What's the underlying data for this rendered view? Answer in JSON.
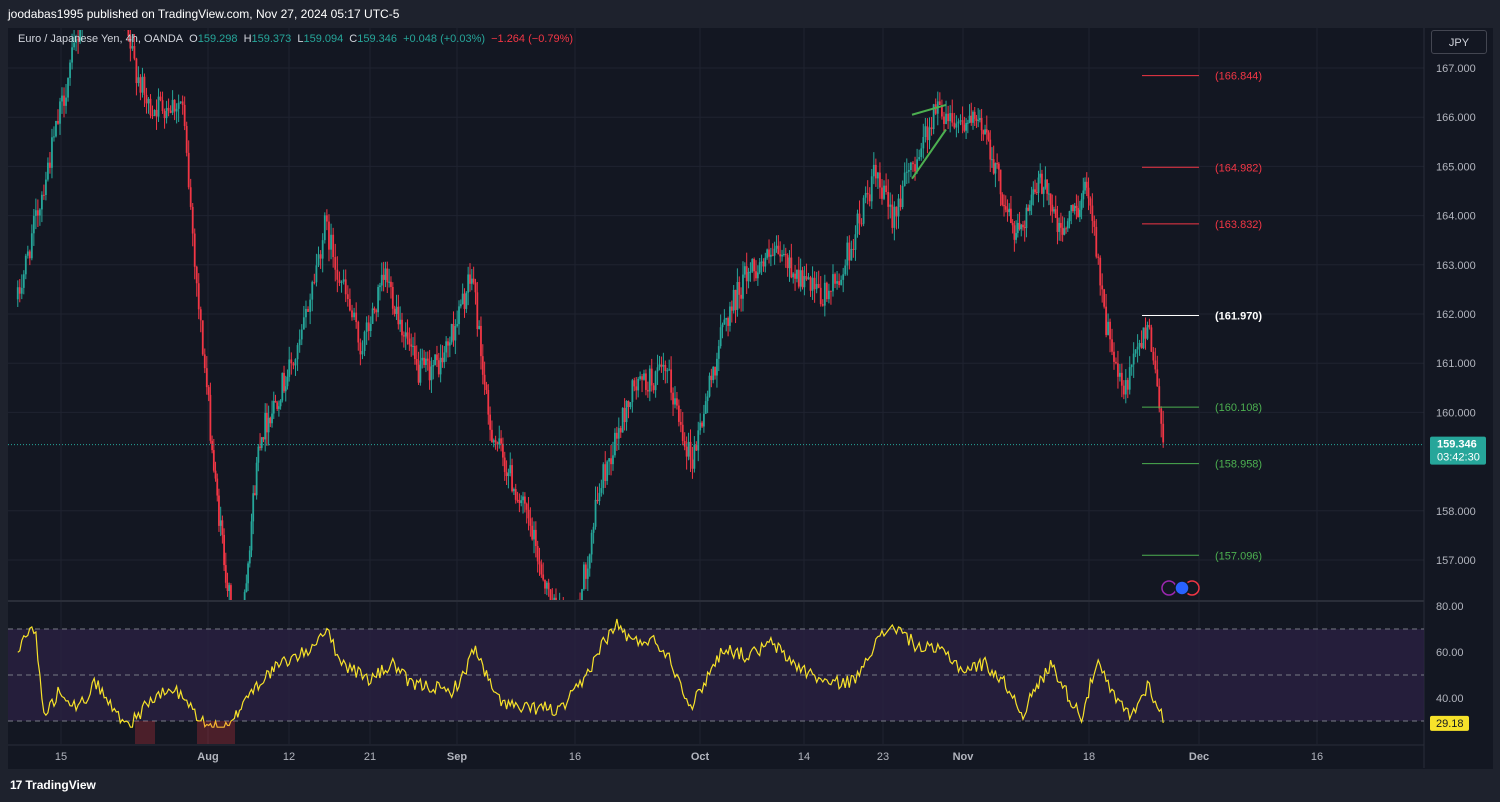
{
  "publisher": "joodabas1995 published on TradingView.com, Nov 27, 2024 05:17 UTC-5",
  "legend": {
    "title": "Euro / Japanese Yen, 4h, OANDA",
    "o_label": "O",
    "o_value": "159.298",
    "h_label": "H",
    "h_value": "159.373",
    "l_label": "L",
    "l_value": "159.094",
    "c_label": "C",
    "c_value": "159.346",
    "change": "+0.048 (+0.03%)",
    "change2": "−1.264 (−0.79%)"
  },
  "currency_button": "JPY",
  "brand": "TradingView",
  "colors": {
    "background": "#131722",
    "grid": "#1f2330",
    "up": "#26a69a",
    "down": "#f23645",
    "rsi": "#f7e22a",
    "rsi_band": "#2a2142",
    "level_red": "#f23645",
    "level_green": "#4caf50",
    "level_white": "#ffffff",
    "price_badge": "#26a69a",
    "rsi_badge": "#f7e22a"
  },
  "chart_data": [
    {
      "type": "candlestick",
      "symbol": "EURJPY",
      "timeframe": "4h",
      "ylim": [
        156.1,
        167.7
      ],
      "y_ticks": [
        "167.000",
        "166.000",
        "165.000",
        "164.000",
        "163.000",
        "162.000",
        "161.000",
        "160.000",
        "158.000",
        "157.000"
      ],
      "x_ticks": [
        "15",
        "Aug",
        "12",
        "21",
        "Sep",
        "16",
        "Oct",
        "14",
        "23",
        "Nov",
        "18",
        "Dec",
        "16"
      ],
      "price_anchors": [
        {
          "date": "Jul 10",
          "value": 162.3
        },
        {
          "date": "Jul 18",
          "value": 168.5
        },
        {
          "date": "Jul 22",
          "value": 168.0
        },
        {
          "date": "Jul 25",
          "value": 166.2
        },
        {
          "date": "Jul 29",
          "value": 166.3
        },
        {
          "date": "Jul 31",
          "value": 162.0
        },
        {
          "date": "Aug 2",
          "value": 158.5
        },
        {
          "date": "Aug 5",
          "value": 154.9
        },
        {
          "date": "Aug 8",
          "value": 159.5
        },
        {
          "date": "Aug 13",
          "value": 161.2
        },
        {
          "date": "Aug 16",
          "value": 163.8
        },
        {
          "date": "Aug 20",
          "value": 161.3
        },
        {
          "date": "Aug 23",
          "value": 162.8
        },
        {
          "date": "Aug 27",
          "value": 160.8
        },
        {
          "date": "Aug 30",
          "value": 161.0
        },
        {
          "date": "Sep 3",
          "value": 162.8
        },
        {
          "date": "Sep 5",
          "value": 159.8
        },
        {
          "date": "Sep 10",
          "value": 157.8
        },
        {
          "date": "Sep 13",
          "value": 156.1
        },
        {
          "date": "Sep 16",
          "value": 155.6
        },
        {
          "date": "Sep 19",
          "value": 158.5
        },
        {
          "date": "Sep 23",
          "value": 160.5
        },
        {
          "date": "Sep 27",
          "value": 160.8
        },
        {
          "date": "Sep 30",
          "value": 159.0
        },
        {
          "date": "Oct 4",
          "value": 161.8
        },
        {
          "date": "Oct 7",
          "value": 162.9
        },
        {
          "date": "Oct 11",
          "value": 163.2
        },
        {
          "date": "Oct 16",
          "value": 162.3
        },
        {
          "date": "Oct 18",
          "value": 162.7
        },
        {
          "date": "Oct 22",
          "value": 164.8
        },
        {
          "date": "Oct 24",
          "value": 164.0
        },
        {
          "date": "Oct 29",
          "value": 166.2
        },
        {
          "date": "Nov 1",
          "value": 165.9
        },
        {
          "date": "Nov 4",
          "value": 165.8
        },
        {
          "date": "Nov 6",
          "value": 164.6
        },
        {
          "date": "Nov 8",
          "value": 163.6
        },
        {
          "date": "Nov 12",
          "value": 164.8
        },
        {
          "date": "Nov 14",
          "value": 163.6
        },
        {
          "date": "Nov 18",
          "value": 164.6
        },
        {
          "date": "Nov 20",
          "value": 161.8
        },
        {
          "date": "Nov 22",
          "value": 160.3
        },
        {
          "date": "Nov 25",
          "value": 161.9
        },
        {
          "date": "Nov 27",
          "value": 159.3
        }
      ],
      "levels": [
        {
          "label": "(166.844)",
          "value": 166.844,
          "color": "red"
        },
        {
          "label": "(164.982)",
          "value": 164.982,
          "color": "red"
        },
        {
          "label": "(163.832)",
          "value": 163.832,
          "color": "red"
        },
        {
          "label": "(161.970)",
          "value": 161.97,
          "color": "white"
        },
        {
          "label": "(160.108)",
          "value": 160.108,
          "color": "green"
        },
        {
          "label": "(158.958)",
          "value": 158.958,
          "color": "green"
        },
        {
          "label": "(157.096)",
          "value": 157.096,
          "color": "green"
        }
      ],
      "last_price": {
        "label": "159.346",
        "value": 159.346,
        "countdown": "03:42:30"
      }
    },
    {
      "type": "line",
      "name": "RSI",
      "ylim": [
        27.3,
        81
      ],
      "y_ticks": [
        "80.00",
        "60.00",
        "40.00"
      ],
      "bands": [
        30,
        50,
        70
      ],
      "rsi_anchors": [
        {
          "date": "Jul 10",
          "value": 58
        },
        {
          "date": "Jul 11",
          "value": 70
        },
        {
          "date": "Jul 12",
          "value": 70
        },
        {
          "date": "Jul 13",
          "value": 32
        },
        {
          "date": "Jul 15",
          "value": 44
        },
        {
          "date": "Jul 17",
          "value": 35
        },
        {
          "date": "Jul 19",
          "value": 47
        },
        {
          "date": "Jul 21",
          "value": 35
        },
        {
          "date": "Jul 23",
          "value": 28
        },
        {
          "date": "Jul 25",
          "value": 38
        },
        {
          "date": "Jul 28",
          "value": 44
        },
        {
          "date": "Jul 30",
          "value": 36
        },
        {
          "date": "Aug 1",
          "value": 27
        },
        {
          "date": "Aug 4",
          "value": 27
        },
        {
          "date": "Aug 6",
          "value": 40
        },
        {
          "date": "Aug 9",
          "value": 50
        },
        {
          "date": "Aug 11",
          "value": 55
        },
        {
          "date": "Aug 14",
          "value": 60
        },
        {
          "date": "Aug 16",
          "value": 70
        },
        {
          "date": "Aug 18",
          "value": 55
        },
        {
          "date": "Aug 21",
          "value": 48
        },
        {
          "date": "Aug 24",
          "value": 55
        },
        {
          "date": "Aug 26",
          "value": 46
        },
        {
          "date": "Aug 29",
          "value": 45
        },
        {
          "date": "Aug 31",
          "value": 42
        },
        {
          "date": "Sep 2",
          "value": 50
        },
        {
          "date": "Sep 3",
          "value": 63
        },
        {
          "date": "Sep 6",
          "value": 40
        },
        {
          "date": "Sep 9",
          "value": 35
        },
        {
          "date": "Sep 12",
          "value": 36
        },
        {
          "date": "Sep 14",
          "value": 34
        },
        {
          "date": "Sep 17",
          "value": 47
        },
        {
          "date": "Sep 19",
          "value": 62
        },
        {
          "date": "Sep 21",
          "value": 72
        },
        {
          "date": "Sep 23",
          "value": 64
        },
        {
          "date": "Sep 25",
          "value": 66
        },
        {
          "date": "Sep 27",
          "value": 60
        },
        {
          "date": "Sep 30",
          "value": 36
        },
        {
          "date": "Oct 2",
          "value": 50
        },
        {
          "date": "Oct 4",
          "value": 62
        },
        {
          "date": "Oct 7",
          "value": 58
        },
        {
          "date": "Oct 10",
          "value": 64
        },
        {
          "date": "Oct 12",
          "value": 57
        },
        {
          "date": "Oct 14",
          "value": 52
        },
        {
          "date": "Oct 17",
          "value": 46
        },
        {
          "date": "Oct 20",
          "value": 48
        },
        {
          "date": "Oct 21",
          "value": 58
        },
        {
          "date": "Oct 24",
          "value": 72
        },
        {
          "date": "Oct 27",
          "value": 62
        },
        {
          "date": "Oct 30",
          "value": 60
        },
        {
          "date": "Nov 1",
          "value": 52
        },
        {
          "date": "Nov 4",
          "value": 55
        },
        {
          "date": "Nov 7",
          "value": 45
        },
        {
          "date": "Nov 9",
          "value": 33
        },
        {
          "date": "Nov 11",
          "value": 45
        },
        {
          "date": "Nov 13",
          "value": 55
        },
        {
          "date": "Nov 15",
          "value": 42
        },
        {
          "date": "Nov 17",
          "value": 32
        },
        {
          "date": "Nov 19",
          "value": 55
        },
        {
          "date": "Nov 21",
          "value": 40
        },
        {
          "date": "Nov 23",
          "value": 32
        },
        {
          "date": "Nov 25",
          "value": 46
        },
        {
          "date": "Nov 27",
          "value": 29.18
        }
      ],
      "last_value": {
        "label": "29.18",
        "value": 29.18
      }
    }
  ]
}
